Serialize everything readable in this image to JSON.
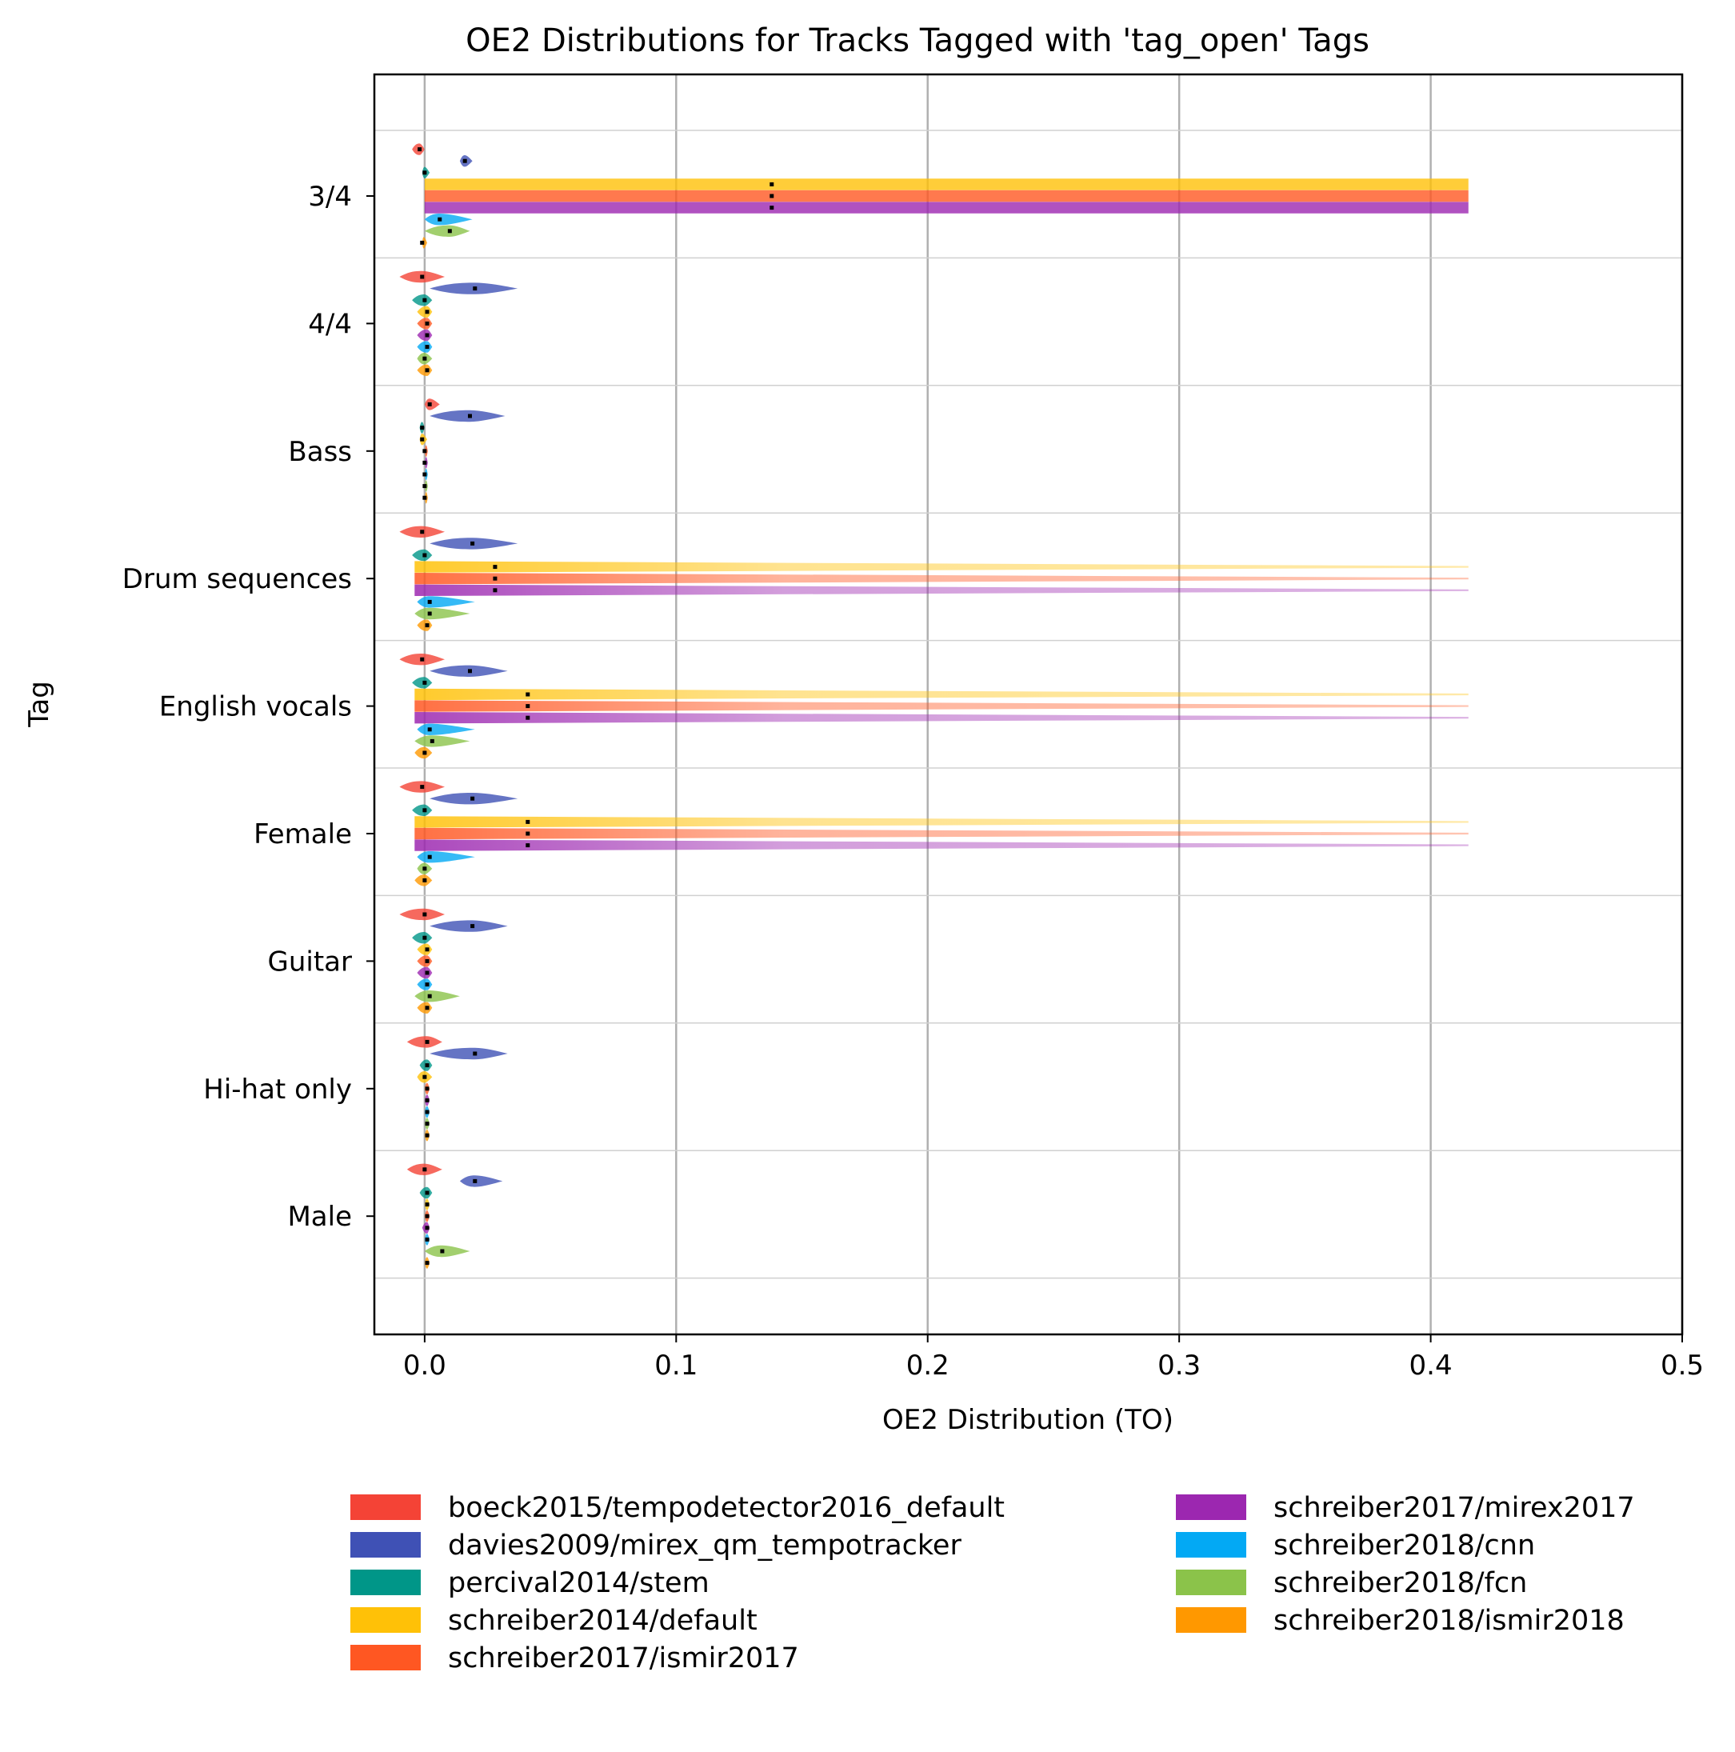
{
  "chart_data": {
    "type": "violin",
    "orientation": "horizontal",
    "title": "OE2 Distributions for Tracks Tagged with 'tag_open' Tags",
    "xlabel": "OE2 Distribution (TO)",
    "ylabel": "Tag",
    "xlim": [
      -0.02,
      0.5
    ],
    "x_ticks": [
      0.0,
      0.1,
      0.2,
      0.3,
      0.4,
      0.5
    ],
    "x_tick_labels": [
      "0.0",
      "0.1",
      "0.2",
      "0.3",
      "0.4",
      "0.5"
    ],
    "grid": true,
    "legend_placement": "bottom",
    "categories": [
      "3/4",
      "4/4",
      "Bass",
      "Drum sequences",
      "English vocals",
      "Female",
      "Guitar",
      "Hi-hat only",
      "Male"
    ],
    "series": [
      {
        "name": "boeck2015/tempodetector2016_default",
        "color": "#f44336",
        "min": [
          -0.005,
          -0.01,
          0.0,
          -0.01,
          -0.01,
          -0.01,
          -0.01,
          -0.007,
          -0.007
        ],
        "max": [
          0.0,
          0.008,
          0.006,
          0.008,
          0.008,
          0.008,
          0.008,
          0.007,
          0.007
        ],
        "median": [
          -0.002,
          -0.001,
          0.002,
          -0.001,
          -0.001,
          -0.001,
          0.0,
          0.001,
          0.0
        ]
      },
      {
        "name": "davies2009/mirex_qm_tempotracker",
        "color": "#3f51b5",
        "min": [
          0.014,
          0.002,
          0.002,
          0.002,
          0.002,
          0.002,
          0.002,
          0.002,
          0.014
        ],
        "max": [
          0.019,
          0.037,
          0.032,
          0.037,
          0.033,
          0.037,
          0.033,
          0.033,
          0.031
        ],
        "median": [
          0.016,
          0.02,
          0.018,
          0.019,
          0.018,
          0.019,
          0.019,
          0.02,
          0.02
        ]
      },
      {
        "name": "percival2014/stem",
        "color": "#009688",
        "min": [
          -0.001,
          -0.005,
          -0.002,
          -0.005,
          -0.005,
          -0.005,
          -0.005,
          -0.002,
          -0.002
        ],
        "max": [
          0.002,
          0.003,
          0.0,
          0.003,
          0.003,
          0.003,
          0.003,
          0.003,
          0.003
        ],
        "median": [
          0.0,
          0.0,
          -0.001,
          0.0,
          0.0,
          0.0,
          0.0,
          0.001,
          0.001
        ]
      },
      {
        "name": "schreiber2014/default",
        "color": "#ffc107",
        "min": [
          0.0,
          -0.003,
          -0.002,
          -0.004,
          -0.004,
          -0.004,
          -0.003,
          -0.003,
          0.0
        ],
        "max": [
          0.415,
          0.003,
          0.001,
          0.415,
          0.415,
          0.415,
          0.003,
          0.003,
          0.002
        ],
        "median": [
          0.138,
          0.001,
          -0.001,
          0.028,
          0.041,
          0.041,
          0.001,
          0.0,
          0.001
        ]
      },
      {
        "name": "schreiber2017/ismir2017",
        "color": "#ff5722",
        "min": [
          0.0,
          -0.003,
          0.0,
          -0.004,
          -0.004,
          -0.004,
          -0.003,
          0.0,
          0.0
        ],
        "max": [
          0.415,
          0.003,
          0.001,
          0.415,
          0.415,
          0.415,
          0.003,
          0.002,
          0.002
        ],
        "median": [
          0.138,
          0.001,
          0.0,
          0.028,
          0.041,
          0.041,
          0.001,
          0.001,
          0.001
        ]
      },
      {
        "name": "schreiber2017/mirex2017",
        "color": "#9c27b0",
        "min": [
          0.0,
          -0.003,
          0.0,
          -0.004,
          -0.004,
          -0.004,
          -0.003,
          0.0,
          -0.001
        ],
        "max": [
          0.415,
          0.003,
          0.001,
          0.415,
          0.415,
          0.415,
          0.003,
          0.002,
          0.002
        ],
        "median": [
          0.138,
          0.001,
          0.0,
          0.028,
          0.041,
          0.041,
          0.001,
          0.001,
          0.001
        ]
      },
      {
        "name": "schreiber2018/cnn",
        "color": "#03a9f4",
        "min": [
          0.0,
          -0.003,
          0.0,
          -0.003,
          -0.003,
          -0.003,
          -0.003,
          0.0,
          0.0
        ],
        "max": [
          0.019,
          0.003,
          0.001,
          0.02,
          0.02,
          0.02,
          0.003,
          0.002,
          0.002
        ],
        "median": [
          0.006,
          0.001,
          0.0,
          0.002,
          0.002,
          0.002,
          0.001,
          0.001,
          0.001
        ]
      },
      {
        "name": "schreiber2018/fcn",
        "color": "#8bc34a",
        "min": [
          0.0,
          -0.003,
          0.0,
          -0.004,
          -0.004,
          -0.003,
          -0.004,
          0.0,
          0.0
        ],
        "max": [
          0.018,
          0.003,
          0.001,
          0.018,
          0.018,
          0.003,
          0.014,
          0.002,
          0.018
        ],
        "median": [
          0.01,
          0.0,
          0.0,
          0.002,
          0.003,
          0.0,
          0.002,
          0.001,
          0.007
        ]
      },
      {
        "name": "schreiber2018/ismir2018",
        "color": "#ff9800",
        "min": [
          -0.001,
          -0.003,
          0.0,
          -0.003,
          -0.004,
          -0.004,
          -0.003,
          0.0,
          0.0
        ],
        "max": [
          0.001,
          0.003,
          0.001,
          0.003,
          0.003,
          0.003,
          0.003,
          0.002,
          0.002
        ],
        "median": [
          -0.001,
          0.001,
          0.0,
          0.001,
          0.0,
          0.0,
          0.001,
          0.001,
          0.001
        ]
      }
    ]
  }
}
